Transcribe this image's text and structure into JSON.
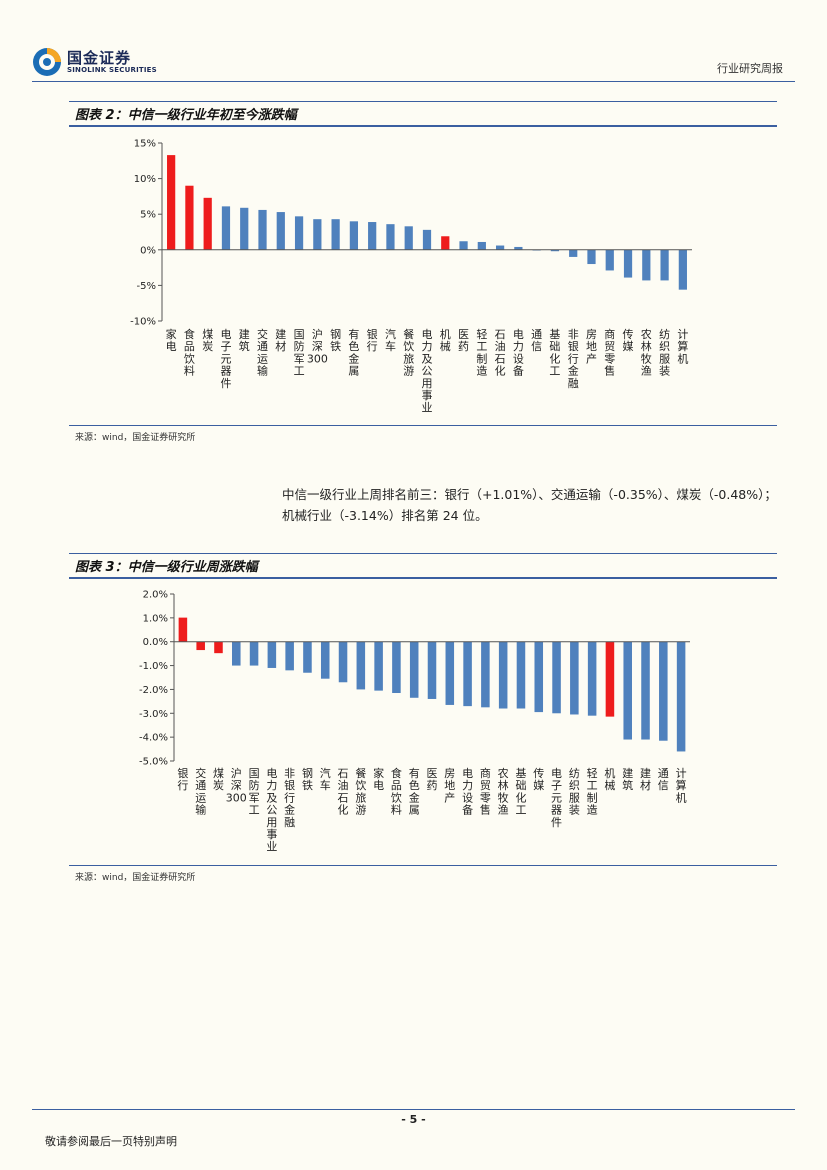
{
  "header": {
    "logo_cn": "国金证券",
    "logo_en": "SINOLINK SECURITIES",
    "report_type": "行业研究周报"
  },
  "figure2": {
    "title": "图表 2：中信一级行业年初至今涨跌幅",
    "source": "来源：wind，国金证券研究所"
  },
  "paragraph": "中信一级行业上周排名前三：银行（+1.01%）、交通运输（-0.35%）、煤炭（-0.48%）；机械行业（-3.14%）排名第 24 位。",
  "figure3": {
    "title": "图表 3：中信一级行业周涨跌幅",
    "source": "来源：wind，国金证券研究所"
  },
  "footer": {
    "page": "- 5 -",
    "disclaimer": "敬请参阅最后一页特别声明"
  },
  "colors": {
    "highlight": "#ee1c1c",
    "normal": "#4f81bd",
    "rule": "#3b5fa0"
  },
  "chart_data": [
    {
      "type": "bar",
      "categories": [
        "家电",
        "食品饮料",
        "煤炭",
        "电子元器件",
        "建筑",
        "交通运输",
        "建材",
        "国防军工",
        "沪深300",
        "钢铁",
        "有色金属",
        "银行",
        "汽车",
        "餐饮旅游",
        "电力及公用事业",
        "机械",
        "医药",
        "轻工制造",
        "石油石化",
        "电力设备",
        "通信",
        "基础化工",
        "非银行金融",
        "房地产",
        "商贸零售",
        "传媒",
        "农林牧渔",
        "纺织服装",
        "计算机"
      ],
      "values": [
        13.3,
        9.0,
        7.3,
        6.1,
        5.9,
        5.6,
        5.3,
        4.7,
        4.3,
        4.3,
        4.0,
        3.9,
        3.6,
        3.3,
        2.8,
        1.9,
        1.2,
        1.1,
        0.6,
        0.4,
        -0.1,
        -0.2,
        -1.0,
        -2.0,
        -2.9,
        -3.9,
        -4.3,
        -4.3,
        -5.6
      ],
      "highlight": [
        "家电",
        "食品饮料",
        "机械",
        "煤炭"
      ],
      "ylim": [
        -10,
        15
      ],
      "yticks": [
        15,
        10,
        5,
        0,
        -5,
        -10
      ],
      "ytick_labels": [
        "15%",
        "10%",
        "5%",
        "0%",
        "-5%",
        "-10%"
      ],
      "grid": false
    },
    {
      "type": "bar",
      "categories": [
        "银行",
        "交通运输",
        "煤炭",
        "沪深300",
        "国防军工",
        "电力及公用事业",
        "非银行金融",
        "钢铁",
        "汽车",
        "石油石化",
        "餐饮旅游",
        "家电",
        "食品饮料",
        "有色金属",
        "医药",
        "房地产",
        "电力设备",
        "商贸零售",
        "农林牧渔",
        "基础化工",
        "传媒",
        "电子元器件",
        "纺织服装",
        "轻工制造",
        "机械",
        "建筑",
        "建材",
        "通信",
        "计算机"
      ],
      "values": [
        1.01,
        -0.35,
        -0.48,
        -1.0,
        -1.0,
        -1.1,
        -1.2,
        -1.3,
        -1.55,
        -1.7,
        -2.0,
        -2.05,
        -2.15,
        -2.35,
        -2.4,
        -2.65,
        -2.7,
        -2.75,
        -2.8,
        -2.8,
        -2.95,
        -3.0,
        -3.05,
        -3.1,
        -3.14,
        -4.1,
        -4.1,
        -4.15,
        -4.6
      ],
      "highlight": [
        "银行",
        "交通运输",
        "煤炭",
        "机械"
      ],
      "ylim": [
        -5,
        2
      ],
      "yticks": [
        2,
        1,
        0,
        -1,
        -2,
        -3,
        -4,
        -5
      ],
      "ytick_labels": [
        "2.0%",
        "1.0%",
        "0.0%",
        "-1.0%",
        "-2.0%",
        "-3.0%",
        "-4.0%",
        "-5.0%"
      ],
      "grid": false
    }
  ]
}
